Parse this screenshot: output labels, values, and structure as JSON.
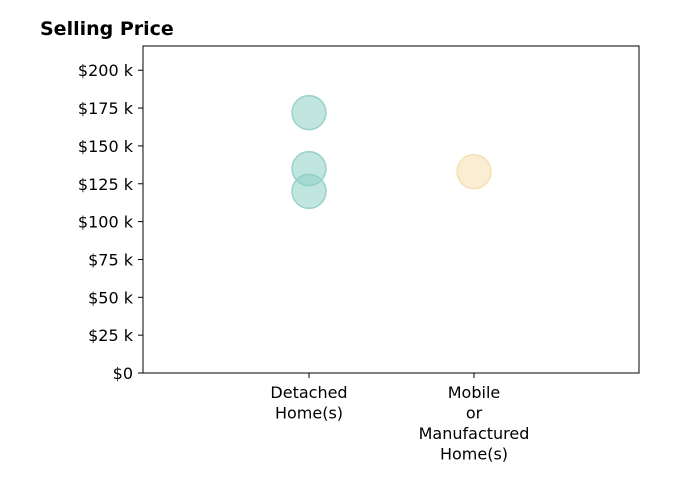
{
  "chart_data": {
    "type": "scatter",
    "title": "Selling Price",
    "xlabel": "",
    "ylabel": "",
    "categories": [
      [
        "Detached",
        "Home(s)"
      ],
      [
        "Mobile",
        "or",
        "Manufactured",
        "Home(s)"
      ]
    ],
    "y_ticks": [
      0,
      25000,
      50000,
      75000,
      100000,
      125000,
      150000,
      175000,
      200000
    ],
    "y_tick_labels": [
      "$0",
      "$25 k",
      "$50 k",
      "$75 k",
      "$100 k",
      "$125 k",
      "$150 k",
      "$175 k",
      "$200 k"
    ],
    "ylim": [
      0,
      216000
    ],
    "grid": false,
    "legend": "none",
    "points": [
      {
        "category": 0,
        "y": 172000,
        "color": "#8ecfc5"
      },
      {
        "category": 0,
        "y": 135000,
        "color": "#8ecfc5"
      },
      {
        "category": 0,
        "y": 120000,
        "color": "#8ecfc5"
      },
      {
        "category": 1,
        "y": 133000,
        "color": "#f5dfaf"
      }
    ]
  }
}
